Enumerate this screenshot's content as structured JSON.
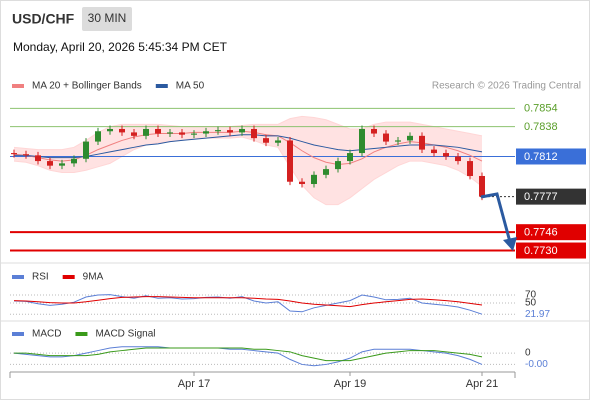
{
  "header": {
    "symbol": "USD/CHF",
    "interval": "30 MIN",
    "datetime": "Monday, April 20, 2026 5:45:34 PM CET",
    "attribution": "Research © 2026 Trading Central"
  },
  "chart_data": [
    {
      "type": "candlestick",
      "categories": [
        null,
        null,
        null,
        null,
        null,
        null,
        null,
        null,
        null,
        null,
        null,
        null,
        null,
        null,
        null,
        "Apr 17",
        null,
        null,
        null,
        null,
        null,
        null,
        null,
        null,
        null,
        null,
        null,
        null,
        "Apr 19",
        null,
        null,
        null,
        null,
        null,
        null,
        null,
        null,
        null,
        null,
        "Apr 21"
      ],
      "open": [
        0.7815,
        0.7814,
        0.7813,
        0.7808,
        0.7804,
        0.7806,
        0.781,
        0.7825,
        0.7834,
        0.7836,
        0.7833,
        0.783,
        0.7836,
        0.7832,
        0.7833,
        0.7831,
        0.7832,
        0.7834,
        0.7835,
        0.7833,
        0.7836,
        0.7828,
        0.7824,
        0.7826,
        0.779,
        0.7788,
        0.7796,
        0.7801,
        0.7808,
        0.7815,
        0.7836,
        0.7832,
        0.7825,
        0.7826,
        0.783,
        0.7818,
        0.7815,
        0.7812,
        0.7808,
        0.7795
      ],
      "high": [
        0.7818,
        0.7817,
        0.7816,
        0.7811,
        0.7809,
        0.7813,
        0.7828,
        0.7837,
        0.7839,
        0.7839,
        0.7836,
        0.7839,
        0.7839,
        0.7836,
        0.7836,
        0.7835,
        0.7837,
        0.7838,
        0.7838,
        0.7839,
        0.7839,
        0.7831,
        0.7829,
        0.7829,
        0.7793,
        0.7799,
        0.7804,
        0.7811,
        0.7818,
        0.7839,
        0.7839,
        0.7835,
        0.7829,
        0.7833,
        0.7833,
        0.7821,
        0.7818,
        0.7815,
        0.7811,
        0.7798
      ],
      "low": [
        0.7811,
        0.781,
        0.7805,
        0.7801,
        0.7801,
        0.7803,
        0.7807,
        0.7822,
        0.7831,
        0.783,
        0.7827,
        0.7827,
        0.7829,
        0.7829,
        0.7828,
        0.7828,
        0.7829,
        0.7831,
        0.783,
        0.783,
        0.7825,
        0.7821,
        0.7821,
        0.7787,
        0.7785,
        0.7785,
        0.7793,
        0.7798,
        0.7805,
        0.7812,
        0.7829,
        0.7822,
        0.7822,
        0.7823,
        0.7815,
        0.7812,
        0.7809,
        0.7805,
        0.7792,
        0.7774
      ],
      "close": [
        0.7814,
        0.7813,
        0.7808,
        0.7804,
        0.7806,
        0.781,
        0.7825,
        0.7834,
        0.7836,
        0.7833,
        0.783,
        0.7836,
        0.7832,
        0.7833,
        0.7831,
        0.7832,
        0.7834,
        0.7835,
        0.7833,
        0.7836,
        0.7828,
        0.7824,
        0.7826,
        0.779,
        0.7788,
        0.7796,
        0.7801,
        0.7808,
        0.7815,
        0.7836,
        0.7832,
        0.7825,
        0.7826,
        0.783,
        0.7818,
        0.7815,
        0.7812,
        0.7808,
        0.7795,
        0.7777
      ],
      "up_color": "#2e8b2e",
      "down_color": "#d42020",
      "series": [
        {
          "name": "MA 20 + Bollinger Bands",
          "color": "#f08080",
          "values": [
            0.7814,
            0.7813,
            0.7811,
            0.7809,
            0.7808,
            0.7809,
            0.7813,
            0.7818,
            0.7822,
            0.7826,
            0.7829,
            0.7831,
            0.7832,
            0.7832,
            0.7832,
            0.7833,
            0.7833,
            0.7833,
            0.7833,
            0.7834,
            0.7833,
            0.7831,
            0.783,
            0.7824,
            0.7817,
            0.7811,
            0.7807,
            0.7805,
            0.7806,
            0.781,
            0.7816,
            0.782,
            0.7823,
            0.7825,
            0.7824,
            0.7822,
            0.782,
            0.7817,
            0.7813,
            0.7808
          ],
          "upper": [
            0.782,
            0.7819,
            0.7818,
            0.7818,
            0.7818,
            0.782,
            0.7826,
            0.7833,
            0.7838,
            0.784,
            0.784,
            0.784,
            0.784,
            0.7839,
            0.7838,
            0.7838,
            0.7838,
            0.7838,
            0.7838,
            0.7839,
            0.784,
            0.784,
            0.784,
            0.7845,
            0.7847,
            0.7846,
            0.7844,
            0.784,
            0.7836,
            0.7836,
            0.784,
            0.7842,
            0.7842,
            0.7842,
            0.784,
            0.7838,
            0.7836,
            0.7834,
            0.7832,
            0.783
          ],
          "lower": [
            0.7808,
            0.7807,
            0.7804,
            0.78,
            0.7798,
            0.7798,
            0.78,
            0.7803,
            0.7806,
            0.7812,
            0.7818,
            0.7822,
            0.7824,
            0.7825,
            0.7826,
            0.7828,
            0.7828,
            0.7828,
            0.7828,
            0.7829,
            0.7826,
            0.7822,
            0.782,
            0.7803,
            0.7787,
            0.7776,
            0.777,
            0.777,
            0.7776,
            0.7784,
            0.7792,
            0.7798,
            0.7804,
            0.7808,
            0.7808,
            0.7806,
            0.7804,
            0.78,
            0.7794,
            0.7786
          ],
          "band_color": "#ffd6d6"
        },
        {
          "name": "MA 50",
          "color": "#2b5aa0",
          "values": [
            0.7813,
            0.7813,
            0.7812,
            0.7811,
            0.7811,
            0.7811,
            0.7812,
            0.7814,
            0.7816,
            0.7818,
            0.782,
            0.7822,
            0.7823,
            0.7825,
            0.7826,
            0.7827,
            0.7828,
            0.7829,
            0.783,
            0.7831,
            0.7831,
            0.783,
            0.783,
            0.7828,
            0.7825,
            0.7822,
            0.782,
            0.7818,
            0.7817,
            0.7818,
            0.7819,
            0.782,
            0.7821,
            0.7822,
            0.7822,
            0.7822,
            0.7821,
            0.782,
            0.7818,
            0.7816
          ]
        }
      ],
      "ylim": [
        0.772,
        0.7863
      ],
      "levels": [
        {
          "value": 0.7854,
          "label": "0.7854",
          "color": "#8dc26f",
          "boxed": false
        },
        {
          "value": 0.7838,
          "label": "0.7838",
          "color": "#8dc26f",
          "boxed": false
        },
        {
          "value": 0.7812,
          "label": "0.7812",
          "color": "#3a6fd8",
          "boxed": true
        },
        {
          "value": 0.7777,
          "label": "0.7777",
          "color": "#333333",
          "boxed": true
        },
        {
          "value": 0.7746,
          "label": "0.7746",
          "color": "#e00000",
          "boxed": true
        },
        {
          "value": 0.773,
          "label": "0.7730",
          "color": "#e00000",
          "boxed": true
        }
      ]
    },
    {
      "type": "line",
      "series": [
        {
          "name": "RSI",
          "color": "#5b7fd6",
          "values": [
            55,
            54,
            48,
            44,
            47,
            52,
            65,
            70,
            71,
            66,
            62,
            68,
            62,
            63,
            60,
            61,
            64,
            65,
            62,
            66,
            55,
            50,
            53,
            30,
            28,
            38,
            44,
            50,
            56,
            70,
            65,
            58,
            59,
            62,
            50,
            47,
            44,
            40,
            32,
            21.97
          ]
        },
        {
          "name": "9MA",
          "color": "#e00000",
          "values": [
            56,
            55,
            53,
            51,
            50,
            50,
            53,
            57,
            61,
            64,
            65,
            66,
            66,
            65,
            64,
            63,
            63,
            63,
            63,
            63,
            62,
            60,
            59,
            55,
            50,
            47,
            45,
            43,
            41,
            46,
            50,
            53,
            56,
            59,
            60,
            58,
            56,
            53,
            49,
            45
          ]
        }
      ],
      "ylim": [
        12.5,
        95
      ],
      "yticks": [
        70,
        50,
        21.97
      ]
    },
    {
      "type": "line",
      "series": [
        {
          "name": "MACD",
          "color": "#5b7fd6",
          "values": [
            0.0,
            -0.0001,
            -0.0002,
            -0.0003,
            -0.0003,
            -0.0002,
            0.0,
            0.0002,
            0.0004,
            0.0005,
            0.0005,
            0.0005,
            0.0005,
            0.0004,
            0.0004,
            0.0004,
            0.0004,
            0.0004,
            0.0003,
            0.0003,
            0.0002,
            0.0001,
            0.0,
            -0.0005,
            -0.0009,
            -0.001,
            -0.0009,
            -0.0007,
            -0.0004,
            0.0001,
            0.0003,
            0.0003,
            0.0003,
            0.0003,
            0.0002,
            0.0001,
            0.0,
            -0.0002,
            -0.0005,
            -0.0009
          ]
        },
        {
          "name": "MACD Signal",
          "color": "#3a9a1a",
          "values": [
            0.0,
            0.0,
            -0.0001,
            -0.0002,
            -0.0002,
            -0.0002,
            -0.0002,
            -0.0001,
            0.0001,
            0.0002,
            0.0003,
            0.0004,
            0.0004,
            0.0004,
            0.0004,
            0.0004,
            0.0004,
            0.0004,
            0.0004,
            0.0004,
            0.0003,
            0.0003,
            0.0002,
            0.0001,
            -0.0002,
            -0.0004,
            -0.0006,
            -0.0006,
            -0.0006,
            -0.0004,
            -0.0002,
            0.0,
            0.0001,
            0.0002,
            0.0002,
            0.0002,
            0.0001,
            0.0,
            -0.0001,
            -0.0003
          ]
        }
      ],
      "ylim": [
        -0.0015,
        0.0008
      ],
      "yticks": [
        0,
        {
          "value": -0.0009,
          "label": "-0.00"
        }
      ]
    }
  ]
}
